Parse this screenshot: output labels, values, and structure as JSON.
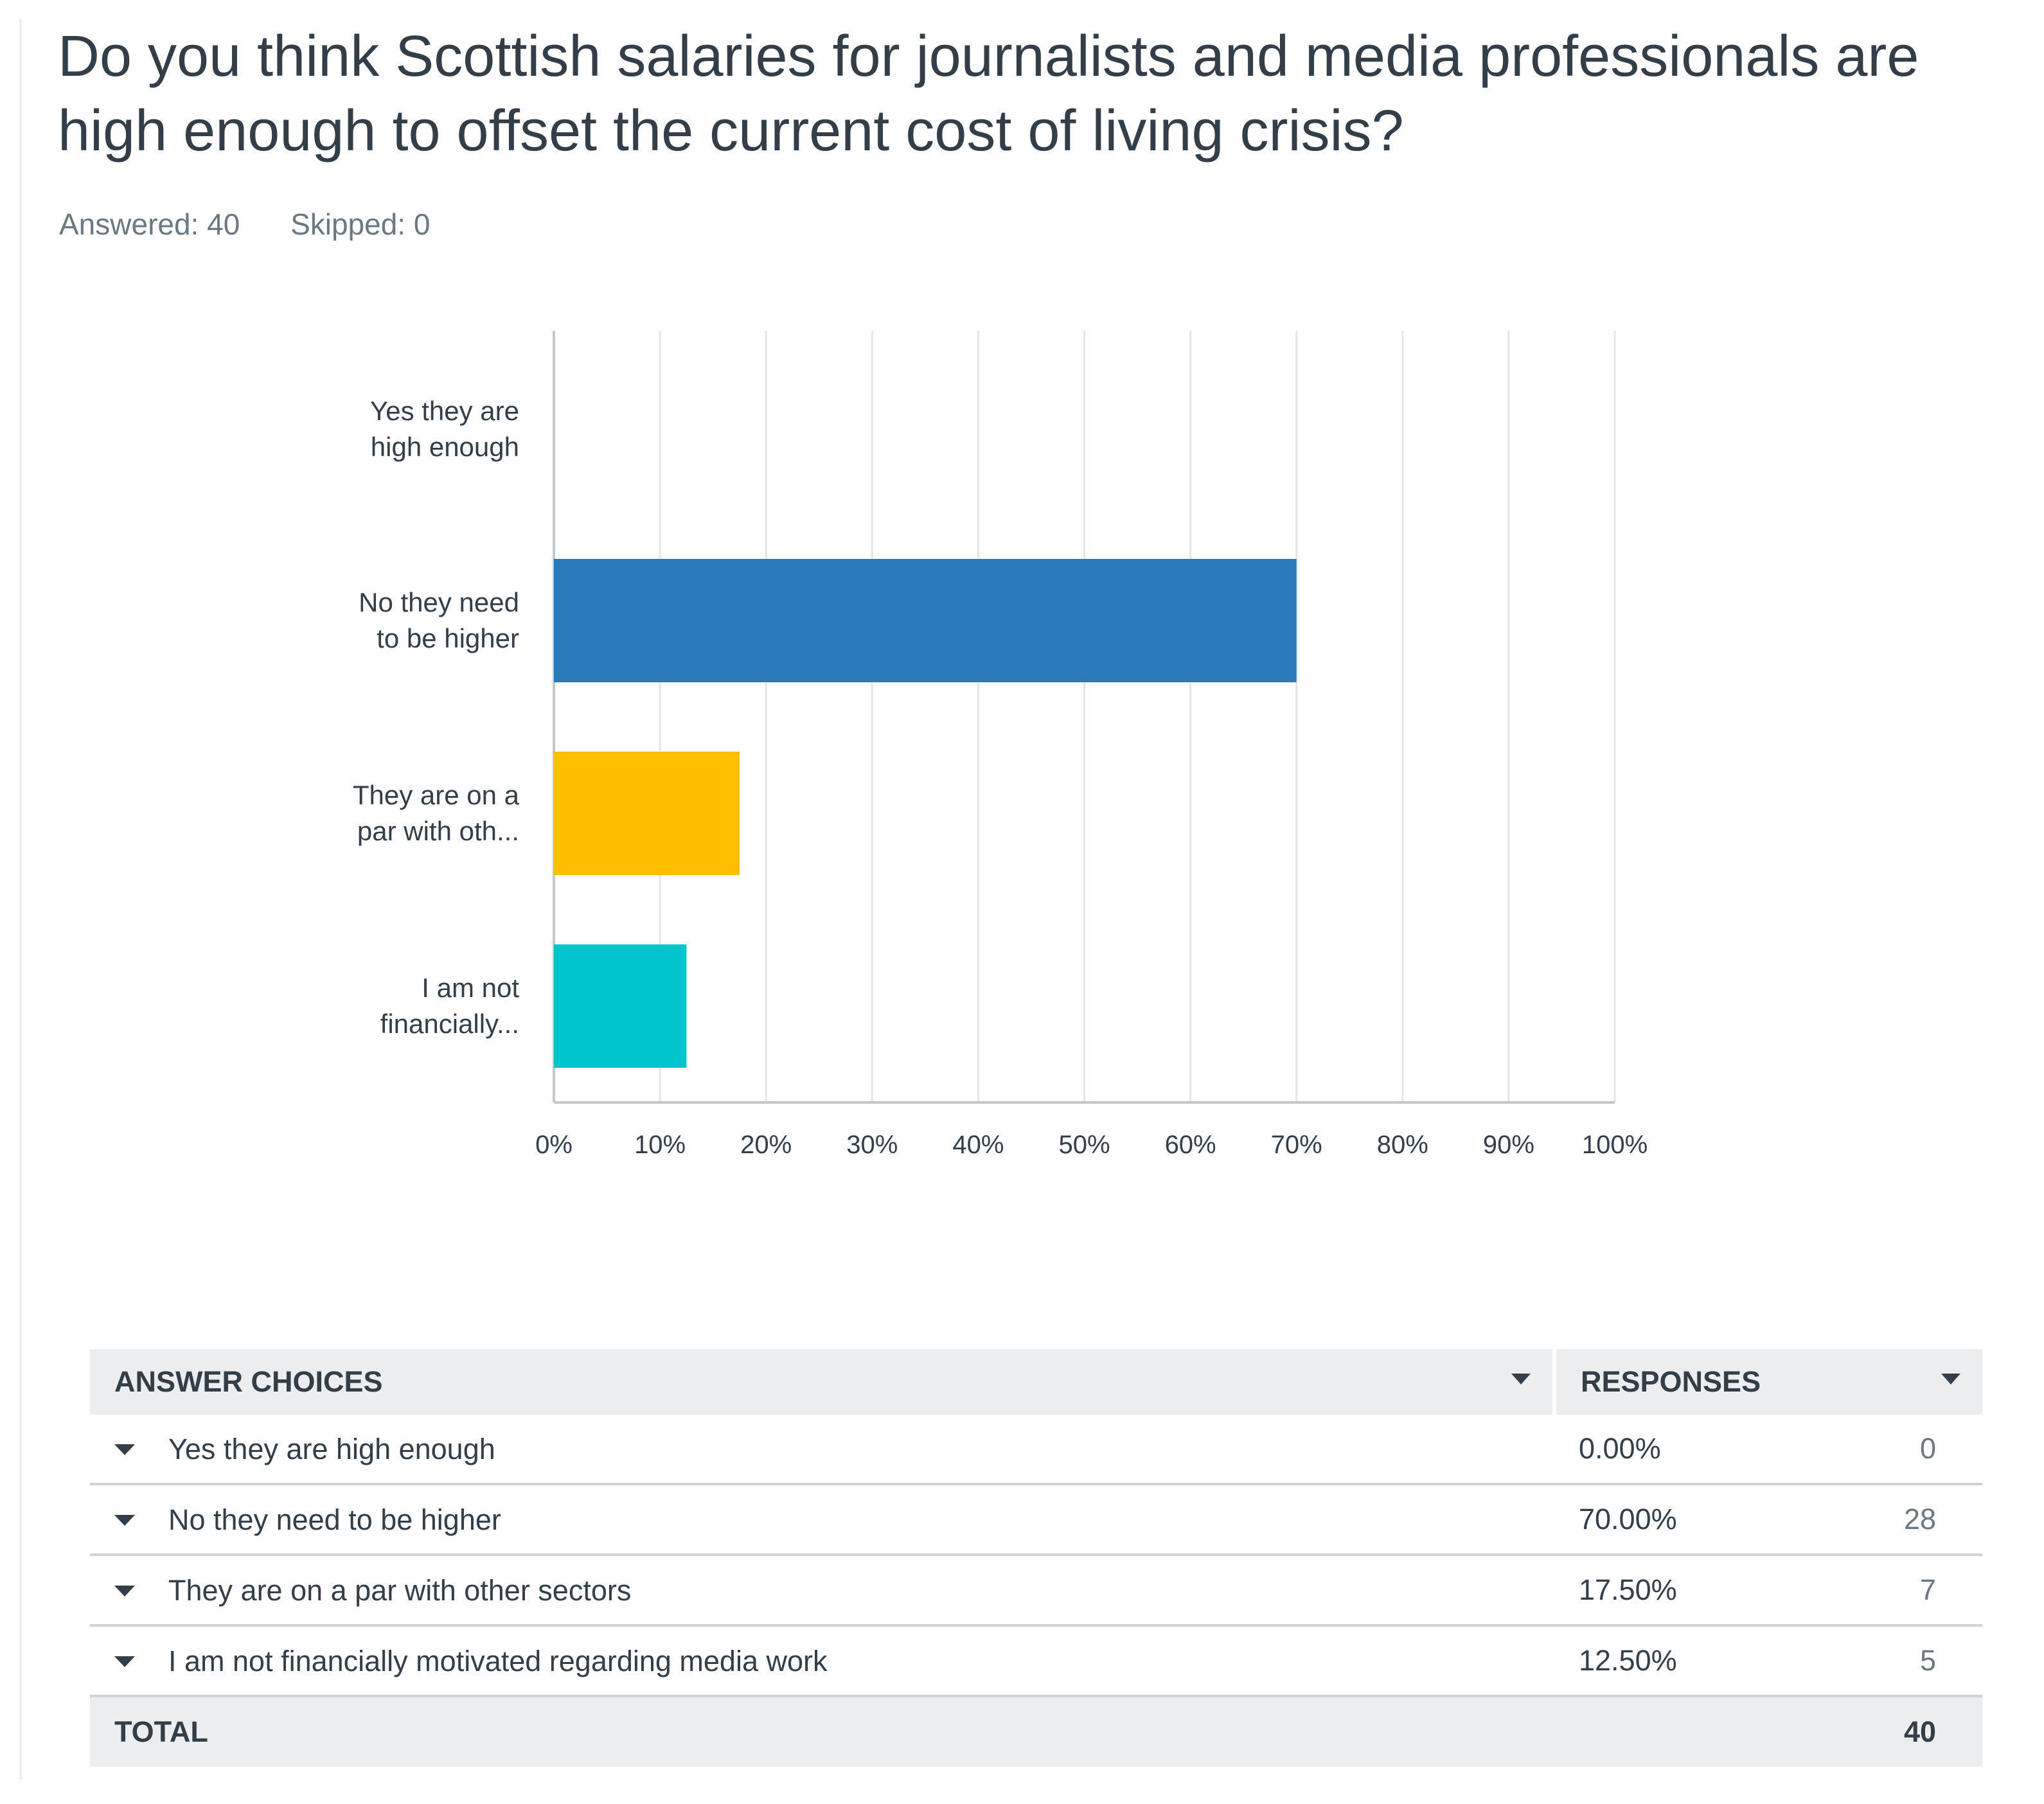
{
  "question": {
    "title": "Do you think Scottish salaries for journalists and media professionals are high enough to offset the current cost of living crisis?",
    "answered_label": "Answered: 40",
    "skipped_label": "Skipped: 0"
  },
  "colors": {
    "bars": [
      "#2a7ab9",
      "#2a7ab9",
      "#ffbe00",
      "#00c5cc"
    ],
    "grid": "#e3e5e6",
    "axis": "#c4c7c9",
    "text": "#333e48"
  },
  "chart_data": {
    "type": "bar",
    "orientation": "horizontal",
    "title": "",
    "xlabel": "",
    "ylabel": "",
    "xlim": [
      0,
      100
    ],
    "x_unit": "%",
    "grid": true,
    "legend": "none",
    "categories": [
      [
        "Yes they are",
        "high enough"
      ],
      [
        "No they need",
        "to be higher"
      ],
      [
        "They are on a",
        "par with oth..."
      ],
      [
        "I am not",
        "financially..."
      ]
    ],
    "values": [
      0,
      70,
      17.5,
      12.5
    ],
    "ticks": [
      "0%",
      "10%",
      "20%",
      "30%",
      "40%",
      "50%",
      "60%",
      "70%",
      "80%",
      "90%",
      "100%"
    ]
  },
  "table": {
    "header_choice": "ANSWER CHOICES",
    "header_responses": "RESPONSES",
    "rows": [
      {
        "choice": "Yes they are high enough",
        "percent": "0.00%",
        "count": "0"
      },
      {
        "choice": "No they need to be higher",
        "percent": "70.00%",
        "count": "28"
      },
      {
        "choice": "They are on a par with other sectors",
        "percent": "17.50%",
        "count": "7"
      },
      {
        "choice": "I am not financially motivated regarding media work",
        "percent": "12.50%",
        "count": "5"
      }
    ],
    "total_label": "TOTAL",
    "total_count": "40"
  }
}
